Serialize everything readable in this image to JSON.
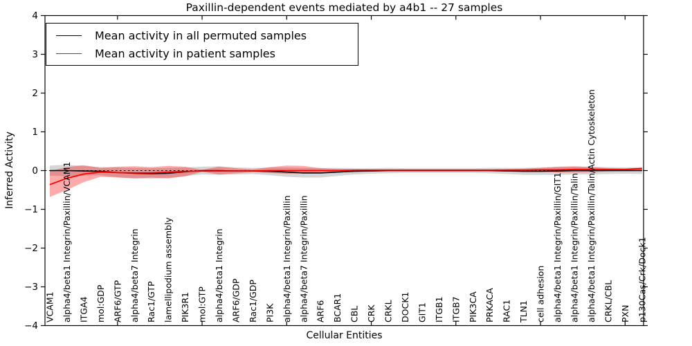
{
  "title": "Paxillin-dependent events mediated by a4b1 -- 27 samples",
  "legend": {
    "items": [
      {
        "label": "Mean activity in all permuted samples",
        "color": "#000000"
      },
      {
        "label": "Mean activity in patient samples",
        "color": "#ff0000"
      }
    ]
  },
  "chart_data": {
    "type": "line",
    "title": "Paxillin-dependent events mediated by a4b1 -- 27 samples",
    "xlabel": "Cellular Entities",
    "ylabel": "Inferred Activity",
    "ylim": [
      -4,
      4
    ],
    "yticks": [
      -4,
      -3,
      -2,
      -1,
      0,
      1,
      2,
      3,
      4
    ],
    "ytick_labels": [
      "−4",
      "−3",
      "−2",
      "−1",
      "0",
      "1",
      "2",
      "3",
      "4"
    ],
    "grid": false,
    "zero_line": "dashed",
    "legend_position": "upper left",
    "categories": [
      "VCAM1",
      "alpha4/beta1 Integrin/Paxillin/VCAM1",
      "ITGA4",
      "mol:GDP",
      "ARF6/GTP",
      "alpha4/beta7 Integrin",
      "Rac1/GTP",
      "lamellipodium assembly",
      "PIK3R1",
      "mol:GTP",
      "alpha4/beta1 Integrin",
      "ARF6/GDP",
      "Rac1/GDP",
      "PI3K",
      "alpha4/beta1 Integrin/Paxillin",
      "alpha4/beta7 Integrin/Paxillin",
      "ARF6",
      "BCAR1",
      "CBL",
      "CRK",
      "CRKL",
      "DOCK1",
      "GIT1",
      "ITGB1",
      "ITGB7",
      "PIK3CA",
      "PRKACA",
      "RAC1",
      "TLN1",
      "cell adhesion",
      "alpha4/beta1 Integrin/Paxillin/GIT1",
      "alpha4/beta1 Integrin/Paxillin/Talin",
      "alpha4/beta1 Integrin/Paxillin/Talin/Actin Cytoskeleton",
      "CRKL/CBL",
      "PXN",
      "p130Cas/Crk/Dock1"
    ],
    "x_major_tick_indices": [
      4,
      9,
      14,
      19,
      24,
      29,
      34
    ],
    "series": [
      {
        "name": "Mean activity in all permuted samples",
        "color": "#000000",
        "width": 1.6,
        "values": [
          0.0,
          0.0,
          -0.01,
          -0.02,
          -0.05,
          -0.07,
          -0.08,
          -0.07,
          -0.03,
          0.0,
          0.0,
          -0.01,
          -0.01,
          -0.02,
          -0.04,
          -0.06,
          -0.06,
          -0.04,
          -0.02,
          -0.01,
          0.0,
          0.0,
          0.0,
          0.0,
          0.0,
          0.0,
          0.0,
          -0.01,
          -0.02,
          -0.02,
          -0.01,
          0.0,
          0.0,
          0.0,
          0.0,
          0.0
        ]
      },
      {
        "name": "Mean activity in patient samples",
        "color": "#ff0000",
        "width": 1.8,
        "values": [
          -0.36,
          -0.2,
          -0.09,
          -0.04,
          -0.05,
          -0.06,
          -0.06,
          -0.04,
          -0.02,
          -0.01,
          -0.01,
          -0.01,
          -0.01,
          0.0,
          0.0,
          0.0,
          0.0,
          0.0,
          0.01,
          0.01,
          0.01,
          0.01,
          0.01,
          0.01,
          0.01,
          0.01,
          0.01,
          0.01,
          0.01,
          0.02,
          0.02,
          0.03,
          0.03,
          0.03,
          0.03,
          0.05
        ]
      }
    ],
    "bands": [
      {
        "name": "permuted-samples-range",
        "color": "#000000",
        "opacity": 0.16,
        "upper": [
          0.13,
          0.15,
          0.12,
          0.09,
          0.08,
          0.07,
          0.06,
          0.07,
          0.08,
          0.1,
          0.11,
          0.08,
          0.07,
          0.08,
          0.08,
          0.07,
          0.07,
          0.07,
          0.06,
          0.06,
          0.07,
          0.06,
          0.06,
          0.06,
          0.06,
          0.06,
          0.07,
          0.07,
          0.07,
          0.08,
          0.09,
          0.1,
          0.1,
          0.09,
          0.08,
          0.09
        ],
        "lower": [
          -0.13,
          -0.15,
          -0.13,
          -0.12,
          -0.17,
          -0.2,
          -0.21,
          -0.19,
          -0.14,
          -0.1,
          -0.11,
          -0.1,
          -0.09,
          -0.12,
          -0.16,
          -0.18,
          -0.18,
          -0.14,
          -0.1,
          -0.08,
          -0.07,
          -0.06,
          -0.06,
          -0.06,
          -0.06,
          -0.06,
          -0.07,
          -0.09,
          -0.11,
          -0.11,
          -0.11,
          -0.1,
          -0.1,
          -0.09,
          -0.08,
          -0.09
        ]
      },
      {
        "name": "patient-samples-range",
        "color": "#ff0000",
        "opacity": 0.33,
        "upper": [
          -0.01,
          0.09,
          0.14,
          0.07,
          0.1,
          0.11,
          0.09,
          0.12,
          0.1,
          0.02,
          0.1,
          0.06,
          0.03,
          0.09,
          0.13,
          0.12,
          0.06,
          0.04,
          0.03,
          0.03,
          0.03,
          0.03,
          0.03,
          0.03,
          0.03,
          0.03,
          0.03,
          0.04,
          0.05,
          0.07,
          0.1,
          0.11,
          0.09,
          0.06,
          0.05,
          0.08
        ],
        "lower": [
          -0.68,
          -0.5,
          -0.3,
          -0.16,
          -0.18,
          -0.2,
          -0.18,
          -0.2,
          -0.15,
          -0.03,
          -0.1,
          -0.07,
          -0.04,
          -0.06,
          -0.08,
          -0.07,
          -0.04,
          -0.03,
          -0.02,
          -0.02,
          -0.02,
          -0.02,
          -0.02,
          -0.02,
          -0.02,
          -0.02,
          -0.02,
          -0.02,
          -0.02,
          -0.03,
          -0.05,
          -0.05,
          -0.04,
          -0.02,
          -0.01,
          0.0
        ]
      }
    ]
  }
}
